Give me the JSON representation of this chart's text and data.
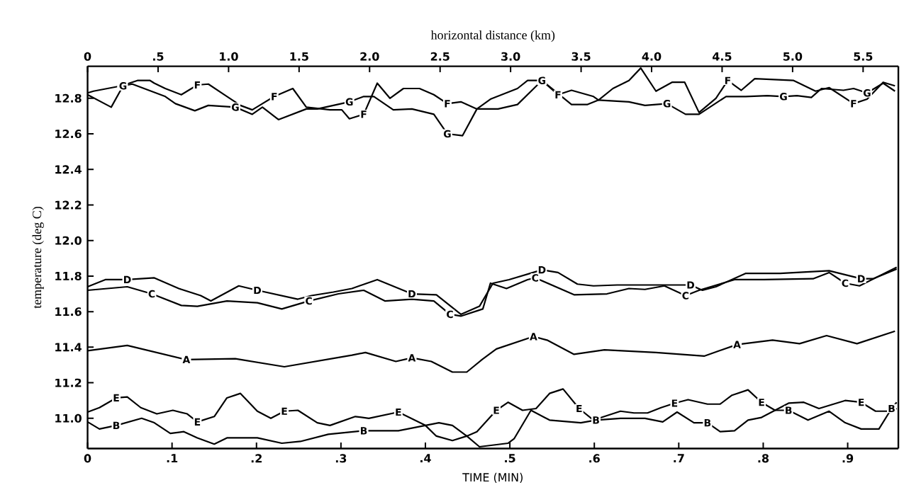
{
  "chart_data": {
    "type": "line",
    "xlabel": "TIME (MIN)",
    "ylabel": "temperature (deg C)",
    "x2label": "horizontal distance (km)",
    "xlim": [
      0,
      0.96
    ],
    "ylim": [
      10.83,
      12.98
    ],
    "xticks": [
      {
        "value": 0,
        "label": "0"
      },
      {
        "value": 0.1,
        "label": ".1"
      },
      {
        "value": 0.2,
        "label": ".2"
      },
      {
        "value": 0.3,
        "label": ".3"
      },
      {
        "value": 0.4,
        "label": ".4"
      },
      {
        "value": 0.5,
        "label": ".5"
      },
      {
        "value": 0.6,
        "label": ".6"
      },
      {
        "value": 0.7,
        "label": ".7"
      },
      {
        "value": 0.8,
        "label": ".8"
      },
      {
        "value": 0.9,
        "label": ".9"
      }
    ],
    "x2lim": [
      0,
      5.75
    ],
    "x2ticks": [
      {
        "value": 0,
        "label": "0"
      },
      {
        "value": 0.5,
        "label": ".5"
      },
      {
        "value": 1.0,
        "label": "1.0"
      },
      {
        "value": 1.5,
        "label": "1.5"
      },
      {
        "value": 2.0,
        "label": "2.0"
      },
      {
        "value": 2.5,
        "label": "2.5"
      },
      {
        "value": 3.0,
        "label": "3.0"
      },
      {
        "value": 3.5,
        "label": "3.5"
      },
      {
        "value": 4.0,
        "label": "4.0"
      },
      {
        "value": 4.5,
        "label": "4.5"
      },
      {
        "value": 5.0,
        "label": "5.0"
      },
      {
        "value": 5.5,
        "label": "5.5"
      }
    ],
    "yticks": [
      {
        "value": 11.0,
        "label": "11.0"
      },
      {
        "value": 11.2,
        "label": "11.2"
      },
      {
        "value": 11.4,
        "label": "11.4"
      },
      {
        "value": 11.6,
        "label": "11.6"
      },
      {
        "value": 11.8,
        "label": "11.8"
      },
      {
        "value": 12.0,
        "label": "12.0"
      },
      {
        "value": 12.2,
        "label": "12.2"
      },
      {
        "value": 12.4,
        "label": "12.4"
      },
      {
        "value": 12.6,
        "label": "12.6"
      },
      {
        "value": 12.8,
        "label": "12.8"
      }
    ],
    "line_style": "solid",
    "marker": "none",
    "series": [
      {
        "name": "A",
        "color": "#000000",
        "x": [
          0,
          0.047,
          0.117,
          0.175,
          0.233,
          0.313,
          0.329,
          0.365,
          0.384,
          0.407,
          0.432,
          0.449,
          0.467,
          0.484,
          0.528,
          0.544,
          0.576,
          0.612,
          0.673,
          0.73,
          0.769,
          0.811,
          0.843,
          0.875,
          0.911,
          0.956
        ],
        "values": [
          11.38,
          11.41,
          11.33,
          11.335,
          11.29,
          11.355,
          11.37,
          11.32,
          11.34,
          11.32,
          11.26,
          11.26,
          11.33,
          11.39,
          11.46,
          11.44,
          11.36,
          11.385,
          11.37,
          11.35,
          11.415,
          11.44,
          11.42,
          11.465,
          11.42,
          11.49
        ]
      },
      {
        "name": "B",
        "color": "#000000",
        "x": [
          0,
          0.014,
          0.034,
          0.064,
          0.079,
          0.098,
          0.114,
          0.13,
          0.15,
          0.165,
          0.201,
          0.23,
          0.252,
          0.285,
          0.327,
          0.368,
          0.4,
          0.413,
          0.432,
          0.449,
          0.464,
          0.498,
          0.505,
          0.525,
          0.547,
          0.584,
          0.602,
          0.631,
          0.66,
          0.681,
          0.698,
          0.718,
          0.734,
          0.749,
          0.766,
          0.782,
          0.798,
          0.814,
          0.83,
          0.853,
          0.878,
          0.897,
          0.916,
          0.937,
          0.952,
          0.958
        ],
        "values": [
          10.98,
          10.94,
          10.96,
          11.0,
          10.975,
          10.915,
          10.925,
          10.89,
          10.855,
          10.89,
          10.89,
          10.86,
          10.87,
          10.91,
          10.93,
          10.93,
          10.96,
          10.9,
          10.875,
          10.9,
          10.84,
          10.86,
          10.885,
          11.045,
          10.99,
          10.975,
          10.99,
          11.0,
          11.0,
          10.98,
          11.035,
          10.975,
          10.975,
          10.925,
          10.93,
          10.99,
          11.005,
          11.045,
          11.045,
          10.99,
          11.04,
          10.975,
          10.94,
          10.94,
          11.055,
          11.09
        ]
      },
      {
        "name": "C",
        "color": "#000000",
        "x": [
          0,
          0.047,
          0.076,
          0.111,
          0.13,
          0.165,
          0.201,
          0.23,
          0.262,
          0.297,
          0.327,
          0.352,
          0.384,
          0.41,
          0.429,
          0.442,
          0.468,
          0.477,
          0.496,
          0.521,
          0.53,
          0.576,
          0.615,
          0.641,
          0.66,
          0.683,
          0.708,
          0.724,
          0.766,
          0.801,
          0.859,
          0.878,
          0.897,
          0.914,
          0.958
        ],
        "values": [
          11.72,
          11.74,
          11.7,
          11.635,
          11.63,
          11.66,
          11.65,
          11.615,
          11.66,
          11.7,
          11.72,
          11.66,
          11.67,
          11.66,
          11.585,
          11.575,
          11.615,
          11.76,
          11.73,
          11.78,
          11.79,
          11.695,
          11.7,
          11.73,
          11.725,
          11.745,
          11.69,
          11.72,
          11.78,
          11.78,
          11.785,
          11.82,
          11.76,
          11.745,
          11.85
        ]
      },
      {
        "name": "D",
        "color": "#000000",
        "x": [
          0,
          0.021,
          0.047,
          0.079,
          0.108,
          0.134,
          0.146,
          0.179,
          0.201,
          0.249,
          0.265,
          0.291,
          0.313,
          0.343,
          0.384,
          0.413,
          0.442,
          0.464,
          0.48,
          0.499,
          0.538,
          0.557,
          0.58,
          0.599,
          0.627,
          0.66,
          0.714,
          0.728,
          0.744,
          0.779,
          0.82,
          0.878,
          0.916,
          0.93,
          0.958
        ],
        "values": [
          11.74,
          11.78,
          11.78,
          11.79,
          11.73,
          11.69,
          11.66,
          11.745,
          11.72,
          11.67,
          11.69,
          11.71,
          11.73,
          11.78,
          11.7,
          11.695,
          11.585,
          11.63,
          11.76,
          11.78,
          11.835,
          11.82,
          11.755,
          11.745,
          11.75,
          11.75,
          11.75,
          11.72,
          11.74,
          11.815,
          11.815,
          11.83,
          11.785,
          11.785,
          11.84
        ]
      },
      {
        "name": "E",
        "color": "#000000",
        "x": [
          0,
          0.014,
          0.034,
          0.047,
          0.063,
          0.082,
          0.101,
          0.118,
          0.13,
          0.15,
          0.165,
          0.181,
          0.201,
          0.217,
          0.233,
          0.249,
          0.272,
          0.287,
          0.317,
          0.333,
          0.368,
          0.4,
          0.416,
          0.432,
          0.449,
          0.461,
          0.484,
          0.498,
          0.515,
          0.531,
          0.547,
          0.563,
          0.582,
          0.599,
          0.631,
          0.647,
          0.663,
          0.679,
          0.695,
          0.711,
          0.734,
          0.749,
          0.763,
          0.782,
          0.798,
          0.814,
          0.83,
          0.848,
          0.866,
          0.897,
          0.916,
          0.933,
          0.949,
          0.958
        ],
        "values": [
          11.035,
          11.06,
          11.115,
          11.12,
          11.06,
          11.025,
          11.045,
          11.025,
          10.98,
          11.01,
          11.115,
          11.14,
          11.04,
          11.0,
          11.04,
          11.045,
          10.975,
          10.96,
          11.01,
          11.0,
          11.035,
          10.96,
          10.975,
          10.96,
          10.9,
          10.925,
          11.045,
          11.09,
          11.045,
          11.055,
          11.14,
          11.165,
          11.055,
          10.99,
          11.04,
          11.03,
          11.03,
          11.06,
          11.085,
          11.105,
          11.08,
          11.08,
          11.13,
          11.16,
          11.09,
          11.045,
          11.085,
          11.09,
          11.055,
          11.1,
          11.09,
          11.04,
          11.04,
          11.055
        ]
      },
      {
        "name": "F",
        "color": "#000000",
        "x": [
          0,
          0.007,
          0.04,
          0.059,
          0.074,
          0.079,
          0.092,
          0.111,
          0.13,
          0.143,
          0.162,
          0.181,
          0.195,
          0.207,
          0.221,
          0.243,
          0.259,
          0.287,
          0.301,
          0.31,
          0.327,
          0.343,
          0.358,
          0.374,
          0.393,
          0.41,
          0.426,
          0.442,
          0.461,
          0.486,
          0.509,
          0.538,
          0.557,
          0.573,
          0.599,
          0.605,
          0.622,
          0.641,
          0.655,
          0.673,
          0.692,
          0.707,
          0.724,
          0.744,
          0.758,
          0.774,
          0.79,
          0.836,
          0.862,
          0.878,
          0.907,
          0.923,
          0.942,
          0.956
        ],
        "values": [
          12.83,
          12.84,
          12.87,
          12.9,
          12.9,
          12.885,
          12.855,
          12.82,
          12.875,
          12.88,
          12.82,
          12.76,
          12.735,
          12.77,
          12.81,
          12.855,
          12.75,
          12.735,
          12.735,
          12.685,
          12.71,
          12.885,
          12.8,
          12.855,
          12.855,
          12.82,
          12.77,
          12.78,
          12.74,
          12.74,
          12.765,
          12.9,
          12.82,
          12.845,
          12.81,
          12.79,
          12.855,
          12.9,
          12.97,
          12.84,
          12.89,
          12.89,
          12.72,
          12.8,
          12.9,
          12.845,
          12.91,
          12.9,
          12.84,
          12.86,
          12.77,
          12.795,
          12.89,
          12.87
        ]
      },
      {
        "name": "G",
        "color": "#000000",
        "x": [
          0,
          0.028,
          0.042,
          0.053,
          0.092,
          0.104,
          0.127,
          0.143,
          0.175,
          0.195,
          0.207,
          0.226,
          0.259,
          0.272,
          0.31,
          0.327,
          0.339,
          0.362,
          0.384,
          0.41,
          0.426,
          0.444,
          0.461,
          0.477,
          0.509,
          0.521,
          0.538,
          0.573,
          0.592,
          0.605,
          0.641,
          0.66,
          0.686,
          0.708,
          0.724,
          0.756,
          0.779,
          0.805,
          0.824,
          0.84,
          0.857,
          0.869,
          0.895,
          0.907,
          0.923,
          0.942,
          0.956
        ],
        "values": [
          12.82,
          12.75,
          12.87,
          12.88,
          12.81,
          12.77,
          12.73,
          12.76,
          12.75,
          12.71,
          12.75,
          12.68,
          12.74,
          12.74,
          12.78,
          12.81,
          12.81,
          12.735,
          12.74,
          12.71,
          12.6,
          12.59,
          12.74,
          12.795,
          12.855,
          12.9,
          12.9,
          12.765,
          12.765,
          12.79,
          12.78,
          12.76,
          12.77,
          12.71,
          12.71,
          12.81,
          12.81,
          12.815,
          12.81,
          12.815,
          12.805,
          12.855,
          12.845,
          12.855,
          12.83,
          12.885,
          12.84
        ]
      }
    ]
  }
}
